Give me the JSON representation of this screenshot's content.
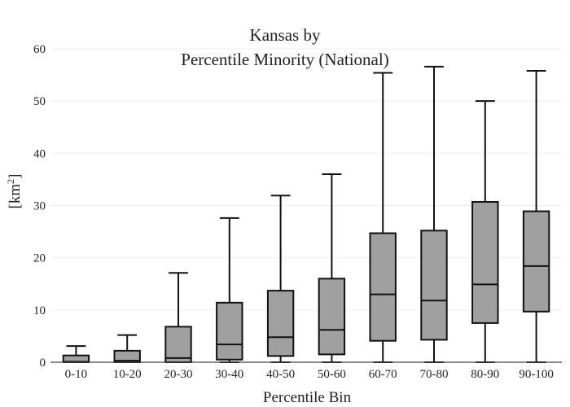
{
  "chart_data": {
    "type": "box",
    "title_line1": "Kansas  by",
    "title_line2": "Percentile Minority (National)",
    "xlabel": "Percentile Bin",
    "ylabel": "[km",
    "ylabel_sup": "2",
    "ylabel_close": "]",
    "ylim": [
      0,
      60
    ],
    "yticks": [
      "0",
      "10",
      "20",
      "30",
      "40",
      "50",
      "60"
    ],
    "grid": true,
    "colors": {
      "box_fill": "#a0a0a0",
      "box_stroke": "#111111",
      "grid": "#eeeeee",
      "axis": "#444444"
    },
    "categories": [
      "0-10",
      "10-20",
      "20-30",
      "30-40",
      "40-50",
      "50-60",
      "60-70",
      "70-80",
      "80-90",
      "90-100"
    ],
    "boxes": [
      {
        "min": 0,
        "q1": 0,
        "median": 0.1,
        "q3": 1.3,
        "max": 3.1
      },
      {
        "min": 0,
        "q1": 0,
        "median": 0.3,
        "q3": 2.2,
        "max": 5.2
      },
      {
        "min": 0,
        "q1": 0,
        "median": 0.8,
        "q3": 6.8,
        "max": 17.1
      },
      {
        "min": 0,
        "q1": 0.5,
        "median": 3.4,
        "q3": 11.4,
        "max": 27.6
      },
      {
        "min": 0,
        "q1": 1.2,
        "median": 4.8,
        "q3": 13.7,
        "max": 31.9
      },
      {
        "min": 0,
        "q1": 1.5,
        "median": 6.2,
        "q3": 16.0,
        "max": 36.0
      },
      {
        "min": 0,
        "q1": 4.1,
        "median": 13.0,
        "q3": 24.7,
        "max": 55.4
      },
      {
        "min": 0,
        "q1": 4.3,
        "median": 11.8,
        "q3": 25.2,
        "max": 56.6
      },
      {
        "min": 0,
        "q1": 7.5,
        "median": 14.9,
        "q3": 30.7,
        "max": 50.0
      },
      {
        "min": 0,
        "q1": 9.7,
        "median": 18.4,
        "q3": 28.9,
        "max": 55.8
      }
    ]
  }
}
